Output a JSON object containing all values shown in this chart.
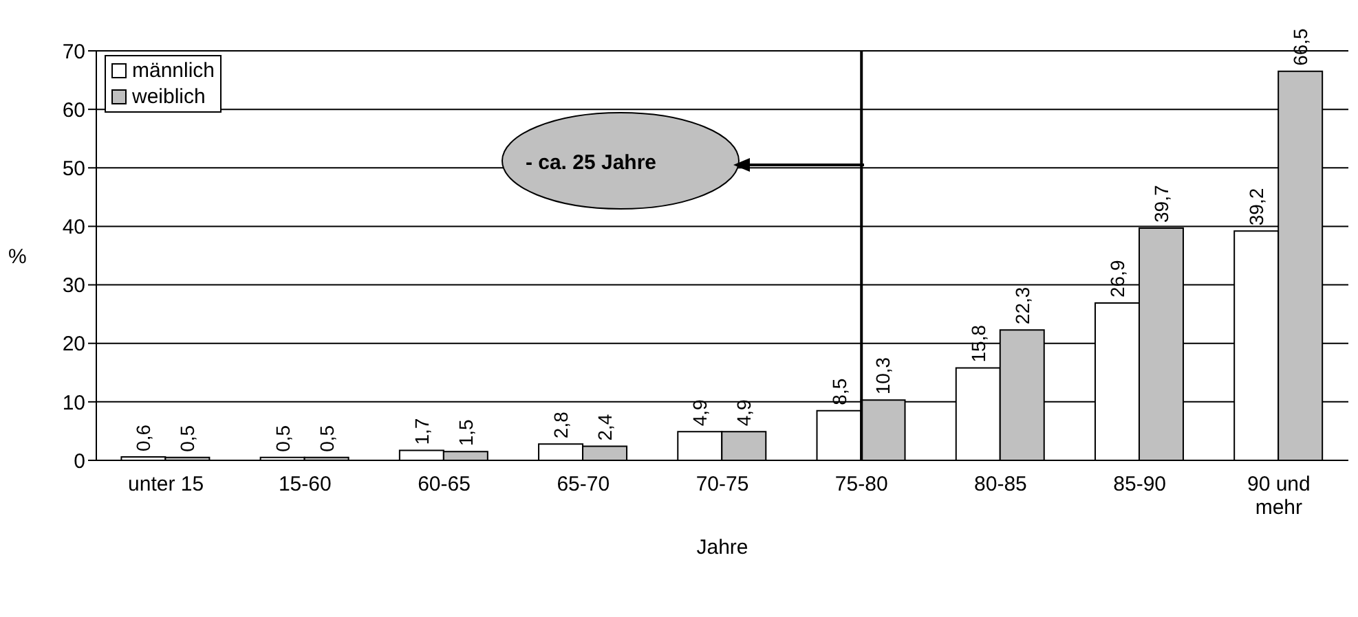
{
  "chart_data": {
    "type": "bar",
    "xlabel": "Jahre",
    "ylabel": "%",
    "categories": [
      "unter 15",
      "15-60",
      "60-65",
      "65-70",
      "70-75",
      "75-80",
      "80-85",
      "85-90",
      "90 und mehr"
    ],
    "series": [
      {
        "name": "männlich",
        "color": "#ffffff",
        "values": [
          0.6,
          0.5,
          1.7,
          2.8,
          4.9,
          8.5,
          15.8,
          26.9,
          39.2
        ],
        "value_labels": [
          "0,6",
          "0,5",
          "1,7",
          "2,8",
          "4,9",
          "8,5",
          "15,8",
          "26,9",
          "39,2"
        ]
      },
      {
        "name": "weiblich",
        "color": "#c0c0c0",
        "values": [
          0.5,
          0.5,
          1.5,
          2.4,
          4.9,
          10.3,
          22.3,
          39.7,
          66.5
        ],
        "value_labels": [
          "0,5",
          "0,5",
          "1,5",
          "2,4",
          "4,9",
          "10,3",
          "22,3",
          "39,7",
          "66,5"
        ]
      }
    ],
    "ylim": [
      0,
      70
    ],
    "yticks": [
      0,
      10,
      20,
      30,
      40,
      50,
      60,
      70
    ],
    "grid": "y",
    "legend": "top left",
    "ref_lines": [
      {
        "axis": "x",
        "value": "75-80",
        "color": "#000000"
      }
    ],
    "annotations": [
      "- ca. 25 Jahre"
    ]
  }
}
